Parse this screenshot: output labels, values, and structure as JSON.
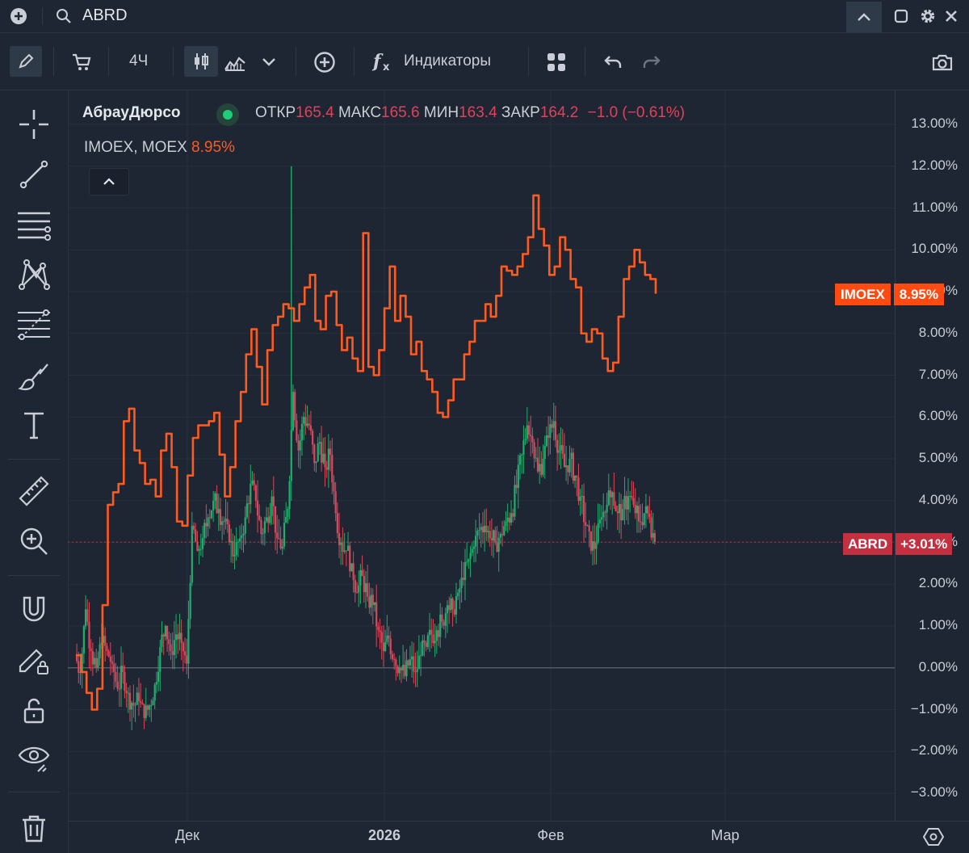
{
  "header": {
    "symbol": "ABRD",
    "icons": [
      "plus-circle-icon",
      "search-icon",
      "chevron-up-icon",
      "square-icon",
      "gear-icon",
      "close-icon"
    ]
  },
  "toolbar": {
    "timeframe": "4Ч",
    "indicators_label": "Индикаторы"
  },
  "legend": {
    "name": "АбрауДюрсо",
    "open_label": "ОТКР",
    "open": "165.4",
    "high_label": "МАКС",
    "high": "165.6",
    "low_label": "МИН",
    "low": "163.4",
    "close_label": "ЗАКР",
    "close": "164.2",
    "change": "−1.0 (−0.61%)",
    "compare_name": "IMOEX, MOEX",
    "compare_value": "8.95%"
  },
  "price_tags": {
    "imoex_name": "IMOEX",
    "imoex_value": "8.95%",
    "abrd_name": "ABRD",
    "abrd_value": "+3.01%"
  },
  "colors": {
    "background": "#1e2633",
    "up": "#1fae6e",
    "down": "#d9475b",
    "compare_line": "#ff5a1f",
    "abrd_tag": "#c4303f"
  },
  "chart_data": {
    "type": "line",
    "y_unit": "%",
    "ylim": [
      -3.5,
      13.5
    ],
    "y_ticks": [
      "13.00%",
      "12.00%",
      "11.00%",
      "10.00%",
      "9.00%",
      "8.00%",
      "7.00%",
      "6.00%",
      "5.00%",
      "4.00%",
      "3.00%",
      "2.00%",
      "1.00%",
      "0.00%",
      "−1.00%",
      "−2.00%",
      "−3.00%"
    ],
    "x_ticks": [
      "Дек",
      "2026",
      "Фев",
      "Мар"
    ],
    "series": [
      {
        "name": "IMOEX",
        "style": "line",
        "last": 8.95,
        "values": [
          0.3,
          -0.1,
          -0.6,
          -1.0,
          -0.5,
          1.5,
          3.9,
          4.2,
          4.4,
          5.9,
          6.2,
          5.2,
          4.9,
          4.4,
          4.5,
          4.1,
          5.2,
          5.6,
          4.8,
          3.5,
          3.4,
          4.6,
          5.5,
          5.8,
          5.8,
          5.9,
          6.1,
          5.1,
          4.1,
          4.8,
          5.9,
          6.6,
          7.5,
          8.1,
          7.2,
          6.3,
          7.6,
          8.2,
          8.4,
          8.7,
          8.6,
          8.3,
          8.7,
          9.1,
          9.4,
          8.3,
          8.1,
          8.9,
          9.0,
          8.2,
          7.6,
          7.9,
          7.4,
          7.1,
          10.4,
          7.2,
          7.0,
          7.6,
          8.6,
          9.6,
          8.3,
          8.9,
          8.4,
          7.5,
          7.8,
          7.1,
          6.9,
          6.6,
          6.1,
          6.0,
          6.4,
          6.9,
          6.9,
          7.5,
          7.8,
          8.3,
          8.3,
          8.7,
          8.4,
          8.9,
          9.6,
          9.5,
          9.4,
          9.6,
          9.9,
          10.3,
          11.3,
          10.5,
          10.1,
          9.4,
          9.6,
          10.3,
          10.0,
          9.3,
          9.1,
          8.0,
          7.8,
          8.1,
          8.0,
          7.4,
          7.1,
          7.3,
          8.4,
          9.3,
          9.6,
          10.0,
          9.7,
          9.4,
          9.3,
          8.95
        ]
      },
      {
        "name": "ABRD",
        "style": "candles",
        "last": 3.01,
        "values": [
          0.3,
          -0.1,
          1.4,
          0.4,
          0.0,
          0.6,
          0.4,
          0.1,
          -0.5,
          -0.1,
          -0.6,
          -0.9,
          -0.8,
          -1.2,
          -0.9,
          -0.4,
          0.5,
          1.0,
          0.4,
          0.8,
          0.6,
          0.1,
          3.4,
          2.8,
          3.1,
          3.6,
          4.0,
          3.8,
          3.5,
          3.0,
          2.7,
          3.1,
          3.6,
          4.4,
          4.0,
          3.2,
          3.6,
          4.1,
          3.1,
          2.9,
          3.8,
          6.6,
          5.2,
          6.0,
          5.8,
          4.9,
          5.4,
          4.8,
          5.1,
          3.7,
          3.0,
          2.8,
          2.5,
          1.8,
          2.2,
          1.7,
          1.5,
          0.9,
          0.4,
          0.7,
          0.2,
          0.0,
          -0.2,
          0.2,
          -0.1,
          0.3,
          0.5,
          0.8,
          0.9,
          1.1,
          1.5,
          1.4,
          1.8,
          2.1,
          2.6,
          2.9,
          3.3,
          3.4,
          3.1,
          3.0,
          3.2,
          3.5,
          3.7,
          4.3,
          5.1,
          5.8,
          5.4,
          4.7,
          5.0,
          5.5,
          5.9,
          5.2,
          4.8,
          5.0,
          4.6,
          4.1,
          3.4,
          2.8,
          3.0,
          3.6,
          3.9,
          4.2,
          3.7,
          3.8,
          4.1,
          3.9,
          3.5,
          3.7,
          3.6,
          3.01
        ]
      }
    ]
  }
}
